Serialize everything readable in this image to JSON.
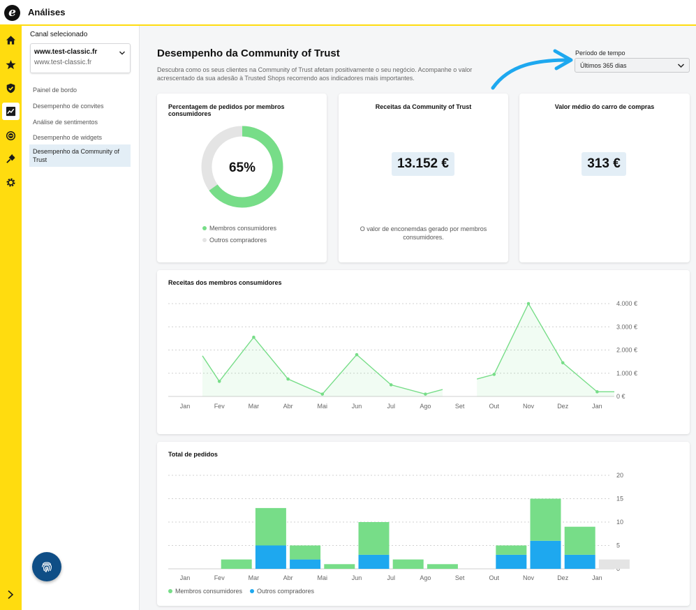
{
  "app": {
    "title": "Análises",
    "logo": "e"
  },
  "rail": {
    "icons": [
      "home-icon",
      "star-icon",
      "shield-check-icon",
      "analytics-icon",
      "etrusted-coin-icon",
      "plug-icon",
      "gear-icon"
    ],
    "active": "analytics-icon"
  },
  "sidebar": {
    "channel_label": "Canal selecionado",
    "channel_name": "www.test-classic.fr",
    "channel_sub": "www.test-classic.fr",
    "items": [
      {
        "label": "Painel de bordo"
      },
      {
        "label": "Desempenho de convites"
      },
      {
        "label": "Análise de sentimentos"
      },
      {
        "label": "Desempenho de widgets"
      },
      {
        "label": "Desempenho da Community of Trust"
      }
    ],
    "active_index": 4
  },
  "main": {
    "title": "Desempenho da Community of Trust",
    "description": "Descubra como os seus clientes na Community of Trust afetam positivamente o seu negócio. Acompanhe o valor acrescentado da sua adesão à Trusted Shops recorrendo aos indicadores mais importantes.",
    "period_label": "Período de tempo",
    "period_value": "Últimos 365 dias"
  },
  "cards": {
    "pct": {
      "title": "Percentagem de pedidos por membros consumidores",
      "value": "65%",
      "fraction": 0.65,
      "legend": [
        "Membros consumidores",
        "Outros compradores"
      ]
    },
    "revenue": {
      "title": "Receitas da Community of Trust",
      "value": "13.152 €",
      "note": "O valor de enconemdas gerado por membros consumidores."
    },
    "avg": {
      "title": "Valor médio do carro de compras",
      "value": "313 €"
    },
    "line": {
      "title": "Receitas dos membros consumidores"
    },
    "bar": {
      "title": "Total de pedidos",
      "legend": [
        "Membros consumidores",
        "Outros compradores"
      ]
    }
  },
  "colors": {
    "accent_yellow": "#ffdc0f",
    "green": "#77dd88",
    "blue": "#1ea8ef",
    "grey": "#e4e4e4",
    "highlight": "#e3eef6",
    "dark_blue": "#0f4e86"
  },
  "chart_data": [
    {
      "type": "line",
      "title": "Receitas dos membros consumidores",
      "categories": [
        "Jan",
        "Fev",
        "Mar",
        "Abr",
        "Mai",
        "Jun",
        "Jul",
        "Ago",
        "Set",
        "Out",
        "Nov",
        "Dez",
        "Jan"
      ],
      "y_ticks": [
        "4.000 €",
        "3.000 €",
        "2.000 €",
        "1.000 €",
        "0 €"
      ],
      "ylim": [
        0,
        4000
      ],
      "series": [
        {
          "points": [
            {
              "x": "Jan",
              "y": 1750,
              "marker": false
            },
            {
              "x": "Fev",
              "y": 650
            },
            {
              "x": "Mar",
              "y": 2550
            },
            {
              "x": "Abr",
              "y": 750
            },
            {
              "x": "Mai",
              "y": 100
            },
            {
              "x": "Jun",
              "y": 1800
            },
            {
              "x": "Jul",
              "y": 500
            },
            {
              "x": "Ago",
              "y": 100
            },
            {
              "x": "Ago-Set",
              "y": 300,
              "marker": false
            },
            {
              "x": "Set-Out",
              "y": 750,
              "marker": false,
              "gap_before": true
            },
            {
              "x": "Out",
              "y": 950
            },
            {
              "x": "Nov",
              "y": 4000
            },
            {
              "x": "Dez",
              "y": 1450
            },
            {
              "x": "Jan",
              "y": 200
            },
            {
              "x": "Jan+",
              "y": 200,
              "marker": false
            }
          ]
        }
      ],
      "grid": true
    },
    {
      "type": "bar",
      "title": "Total de pedidos",
      "categories": [
        "Jan",
        "Fev",
        "Mar",
        "Abr",
        "Mai",
        "Jun",
        "Jul",
        "Ago",
        "Set",
        "Out",
        "Nov",
        "Dez",
        "Jan"
      ],
      "y_ticks": [
        "20",
        "15",
        "10",
        "5",
        "0"
      ],
      "ylim": [
        0,
        20
      ],
      "stacked": true,
      "series": [
        {
          "name": "Outros compradores",
          "values": [
            0,
            0,
            5,
            2,
            0,
            3,
            0,
            0,
            0,
            3,
            6,
            3,
            0
          ]
        },
        {
          "name": "Membros consumidores",
          "values": [
            0,
            2,
            8,
            3,
            1,
            7,
            2,
            1,
            0,
            2,
            9,
            6,
            0
          ]
        }
      ],
      "partial_period": {
        "category_index": 12,
        "value": 2
      },
      "grid": true
    }
  ]
}
